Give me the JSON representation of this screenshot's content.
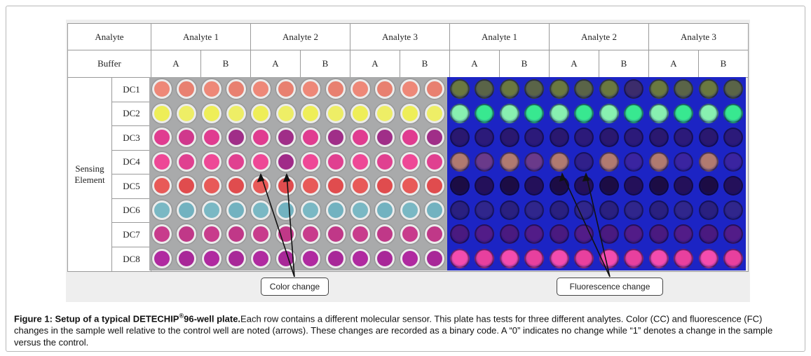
{
  "table": {
    "row1_header": "Analyte",
    "analytes": [
      "Analyte 1",
      "Analyte 2",
      "Analyte 3",
      "Analyte 1",
      "Analyte 2",
      "Analyte 3"
    ],
    "row2_header": "Buffer",
    "buffers": [
      "A",
      "B",
      "A",
      "B",
      "A",
      "B",
      "A",
      "B",
      "A",
      "B",
      "A",
      "B"
    ],
    "sensing_label_line1": "Sensing",
    "sensing_label_line2": "Element",
    "elements": [
      "DC1",
      "DC2",
      "DC3",
      "DC4",
      "DC5",
      "DC6",
      "DC7",
      "DC8"
    ]
  },
  "plate": {
    "color_wells": [
      [
        "#ee8878",
        "#e88070",
        "#ee8878",
        "#e88070",
        "#ee8878",
        "#e88070",
        "#ee8878",
        "#e88070",
        "#ee8878",
        "#e88070",
        "#ee8878",
        "#e88070"
      ],
      [
        "#eeee58",
        "#eeee66",
        "#eeee58",
        "#eeee66",
        "#eeee58",
        "#eeee66",
        "#eeee58",
        "#eeee66",
        "#eeee58",
        "#eeee66",
        "#eeee58",
        "#eeee66"
      ],
      [
        "#e03c90",
        "#d0388c",
        "#e03c90",
        "#a02e88",
        "#e03c90",
        "#a02e88",
        "#e03c90",
        "#a02e88",
        "#e03c90",
        "#a02e88",
        "#e03c90",
        "#a02e88"
      ],
      [
        "#ee4896",
        "#e04090",
        "#ee4896",
        "#e04090",
        "#ee4896",
        "#a02a88",
        "#ee4896",
        "#e04090",
        "#ee4896",
        "#e04090",
        "#ee4896",
        "#e04090"
      ],
      [
        "#e85a58",
        "#e04c4e",
        "#e85a58",
        "#e04c4e",
        "#e85a58",
        "#e04c4e",
        "#e85a58",
        "#e04c4e",
        "#e85a58",
        "#e04c4e",
        "#e85a58",
        "#e04c4e"
      ],
      [
        "#7ab8c4",
        "#72b2c0",
        "#7ab8c4",
        "#72b2c0",
        "#7ab8c4",
        "#72b2c0",
        "#7ab8c4",
        "#72b2c0",
        "#7ab8c4",
        "#72b2c0",
        "#7ab8c4",
        "#72b2c0"
      ],
      [
        "#c83c8c",
        "#c03888",
        "#c83c8c",
        "#c03888",
        "#c83c8c",
        "#c03888",
        "#c83c8c",
        "#c03888",
        "#c83c8c",
        "#c03888",
        "#c83c8c",
        "#c03888"
      ],
      [
        "#b02aa0",
        "#a82898",
        "#b02aa0",
        "#a82898",
        "#b02aa0",
        "#a82898",
        "#b02aa0",
        "#a82898",
        "#b02aa0",
        "#a82898",
        "#b02aa0",
        "#a82898"
      ]
    ],
    "fluor_wells": [
      [
        "#6a7840",
        "#5a6448",
        "#6a7840",
        "#5a6448",
        "#6a7840",
        "#5a6448",
        "#6a7840",
        "#3c2c6c",
        "#6a7840",
        "#5a6448",
        "#6a7840",
        "#5a6448"
      ],
      [
        "#88f0b0",
        "#38e890",
        "#88f0b0",
        "#38e890",
        "#88f0b0",
        "#38e890",
        "#88f0b0",
        "#38e890",
        "#88f0b0",
        "#38e890",
        "#88f0b0",
        "#38e890"
      ],
      [
        "#2a1870",
        "#2c1a7a",
        "#2a1870",
        "#2c1a7a",
        "#2a1870",
        "#2c1a7a",
        "#2a1870",
        "#2c1a7a",
        "#2a1870",
        "#2c1a7a",
        "#2a1870",
        "#2c1a7a"
      ],
      [
        "#b07a70",
        "#6a3a8a",
        "#b07a70",
        "#6a3a8a",
        "#b07a70",
        "#30208a",
        "#b07a70",
        "#3a24a0",
        "#b07a70",
        "#3a24a0",
        "#b07a70",
        "#3a24a0"
      ],
      [
        "#1c0c44",
        "#24105a",
        "#1c0c44",
        "#24105a",
        "#1c0c44",
        "#24105a",
        "#1c0c44",
        "#24105a",
        "#1c0c44",
        "#24105a",
        "#1c0c44",
        "#24105a"
      ],
      [
        "#2a2080",
        "#30268c",
        "#2a2080",
        "#30268c",
        "#2a2080",
        "#30268c",
        "#2a2080",
        "#30268c",
        "#2a2080",
        "#30268c",
        "#2a2080",
        "#30268c"
      ],
      [
        "#4a1a80",
        "#521c88",
        "#4a1a80",
        "#521c88",
        "#4a1a80",
        "#521c88",
        "#4a1a80",
        "#521c88",
        "#4a1a80",
        "#521c88",
        "#4a1a80",
        "#521c88"
      ],
      [
        "#f44cae",
        "#e8409e",
        "#f44cae",
        "#e8409e",
        "#f44cae",
        "#e8409e",
        "#f44cae",
        "#e8409e",
        "#f44cae",
        "#e8409e",
        "#f44cae",
        "#e8409e"
      ]
    ]
  },
  "callouts": {
    "color_change": "Color change",
    "fluorescence_change": "Fluorescence change"
  },
  "caption": {
    "bold_part1": "Figure 1: Setup of a typical DETECHIP",
    "registered": "®",
    "bold_part2": "96-well plate.",
    "text": "Each row contains a different molecular sensor. This plate has tests for three different analytes. Color (CC) and fluorescence (FC) changes in the sample well relative to the control well are noted (arrows). These changes are recorded as a binary code. A “0” indicates no change while “1” denotes a change in the sample versus the control."
  }
}
